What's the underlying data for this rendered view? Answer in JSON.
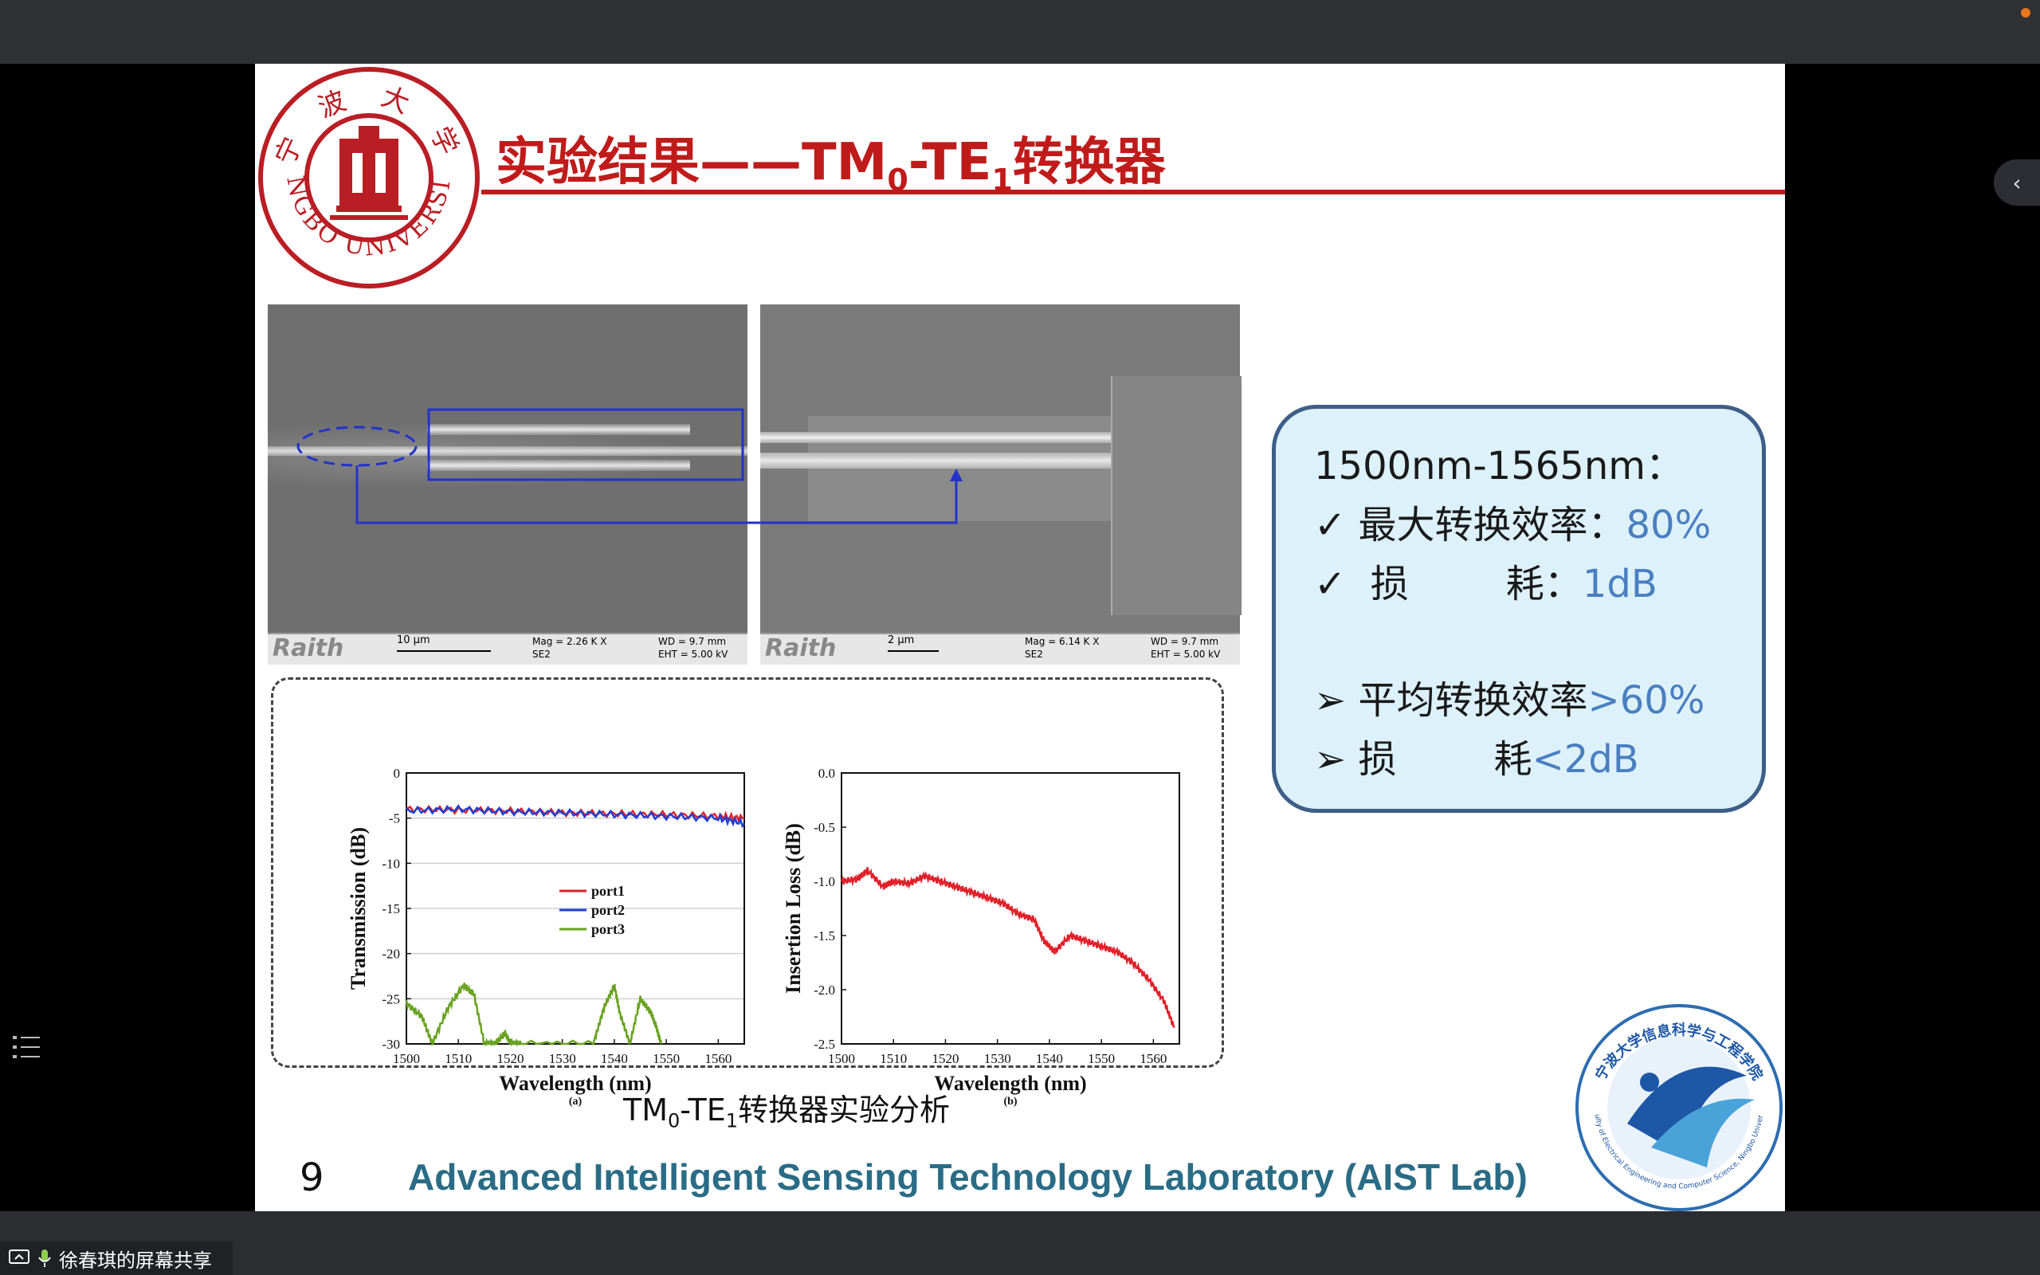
{
  "slide": {
    "title_main": "实验结果——TM",
    "title_sub0": "0",
    "title_mid": "-TE",
    "title_sub1": "1",
    "title_end": "转换器",
    "logo_text": "NINGBO UNIVERSITY",
    "logo_top": "宁 波 大 学",
    "sem_left": {
      "brand": "Raith",
      "scale": "10 μm",
      "mag": "Mag =   2.26 K X",
      "det": "SE2",
      "wd": "WD =  9.7 mm",
      "eht": "EHT =  5.00 kV"
    },
    "sem_right": {
      "brand": "Raith",
      "scale": "2 μm",
      "mag": "Mag =   6.14 K X",
      "det": "SE2",
      "wd": "WD =  9.7 mm",
      "eht": "EHT =  5.00 kV"
    },
    "caption_pre": "TM",
    "caption_sub0": "0",
    "caption_mid": "-TE",
    "caption_sub1": "1",
    "caption_end": "转换器实验分析",
    "page_number": "9",
    "lab_name": "Advanced Intelligent Sensing Technology Laboratory (AIST Lab)",
    "info": {
      "range": "1500nm-1565nm：",
      "l1_label": "最大转换效率：",
      "l1_value": "80%",
      "l2_label": " 损        耗：",
      "l2_value": "1dB",
      "l3_label": "平均转换效率",
      "l3_value": ">60%",
      "l4_label": "损        耗",
      "l4_value": "<2dB",
      "check": "✓",
      "arrow": "➢"
    },
    "badge_text": "宁波大学信息科学与工程学院",
    "badge_ring": "Faculty of Electrical Engineering and Computer Science, Ningbo University"
  },
  "chart_data": [
    {
      "type": "line",
      "xlabel": "Wavelength (nm)",
      "ylabel": "Transmission (dB)",
      "sublabel": "(a)",
      "xlim": [
        1500,
        1565
      ],
      "ylim": [
        -30,
        0
      ],
      "xticks": [
        1500,
        1510,
        1520,
        1530,
        1540,
        1550,
        1560
      ],
      "yticks": [
        0,
        -5,
        -10,
        -15,
        -20,
        -25,
        -30
      ],
      "grid": true,
      "legend": "center-right",
      "series": [
        {
          "name": "port1",
          "color": "#e0202a",
          "x": [
            1500,
            1510,
            1520,
            1530,
            1540,
            1550,
            1560,
            1565
          ],
          "y": [
            -4.0,
            -4.1,
            -4.2,
            -4.4,
            -4.5,
            -4.6,
            -4.8,
            -5.0
          ]
        },
        {
          "name": "port2",
          "color": "#1f3fd6",
          "x": [
            1500,
            1510,
            1520,
            1530,
            1540,
            1550,
            1560,
            1565
          ],
          "y": [
            -4.2,
            -4.0,
            -4.3,
            -4.4,
            -4.6,
            -4.8,
            -5.0,
            -5.6
          ]
        },
        {
          "name": "port3",
          "color": "#6aa321",
          "x": [
            1500,
            1503,
            1505,
            1508,
            1511,
            1513,
            1515,
            1517,
            1519,
            1520,
            1522,
            1536,
            1538,
            1540,
            1541,
            1543,
            1545,
            1547,
            1548,
            1549
          ],
          "y": [
            -25.5,
            -27,
            -30,
            -26,
            -23.5,
            -24.5,
            -30,
            -30,
            -28.8,
            -30,
            -30,
            -30,
            -26,
            -23.5,
            -26.5,
            -30,
            -25,
            -26.5,
            -28,
            -30
          ]
        }
      ]
    },
    {
      "type": "line",
      "xlabel": "Wavelength (nm)",
      "ylabel": "Insertion Loss (dB)",
      "sublabel": "(b)",
      "xlim": [
        1500,
        1565
      ],
      "ylim": [
        -2.5,
        0.0
      ],
      "xticks": [
        1500,
        1510,
        1520,
        1530,
        1540,
        1550,
        1560
      ],
      "yticks": [
        "0.0",
        "-0.5",
        "-1.0",
        "-1.5",
        "-2.0",
        "-2.5"
      ],
      "series": [
        {
          "name": "",
          "color": "#e0202a",
          "x": [
            1500,
            1503,
            1505,
            1508,
            1510,
            1513,
            1516,
            1519,
            1522,
            1525,
            1528,
            1531,
            1534,
            1537,
            1539,
            1541,
            1544,
            1547,
            1550,
            1553,
            1556,
            1559,
            1562,
            1564
          ],
          "y": [
            -1.0,
            -0.98,
            -0.9,
            -1.05,
            -1.0,
            -1.02,
            -0.95,
            -1.0,
            -1.05,
            -1.1,
            -1.15,
            -1.2,
            -1.3,
            -1.35,
            -1.55,
            -1.65,
            -1.5,
            -1.55,
            -1.6,
            -1.65,
            -1.75,
            -1.9,
            -2.1,
            -2.35
          ]
        }
      ]
    }
  ],
  "ui": {
    "share_label": "徐春琪的屏幕共享",
    "collapse_glyph": "‹"
  },
  "colors": {
    "title_red": "#c01b1b",
    "info_box_bg": "#ddf1fb",
    "info_box_border": "#3d5e86",
    "value_blue": "#4a7fc0",
    "lab_teal": "#2a6c86"
  }
}
